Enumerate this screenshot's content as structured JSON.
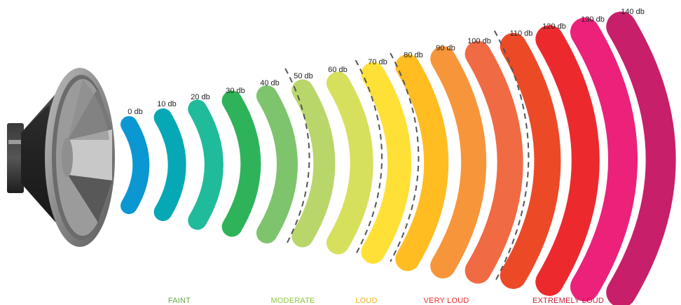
{
  "levels": [
    {
      "label": "0 db",
      "color": "#0b97d2"
    },
    {
      "label": "10 db",
      "color": "#06a8b6"
    },
    {
      "label": "20 db",
      "color": "#1fbb9b"
    },
    {
      "label": "30 db",
      "color": "#2fb35a"
    },
    {
      "label": "40 db",
      "color": "#7ec46d"
    },
    {
      "label": "50 db",
      "color": "#b9d66a"
    },
    {
      "label": "60 db",
      "color": "#d6e05c"
    },
    {
      "label": "70 db",
      "color": "#ffe036"
    },
    {
      "label": "80 db",
      "color": "#ffbd22"
    },
    {
      "label": "90 db",
      "color": "#f7953a"
    },
    {
      "label": "100 db",
      "color": "#f06a44"
    },
    {
      "label": "110 db",
      "color": "#ec4a27"
    },
    {
      "label": "120 db",
      "color": "#ec2a2e"
    },
    {
      "label": "130 db",
      "color": "#ec2179"
    },
    {
      "label": "140 db",
      "color": "#c81f6a"
    }
  ],
  "categories": [
    {
      "label": "FAINT",
      "color": "#6aa84f"
    },
    {
      "label": "MODERATE",
      "color": "#8cc63f"
    },
    {
      "label": "LOUD",
      "color": "#f5b21a"
    },
    {
      "label": "VERY LOUD",
      "color": "#ee2a2e"
    },
    {
      "label": "EXTREMELY LOUD",
      "color": "#c41e3a"
    }
  ],
  "speaker_icon": "speaker-icon"
}
